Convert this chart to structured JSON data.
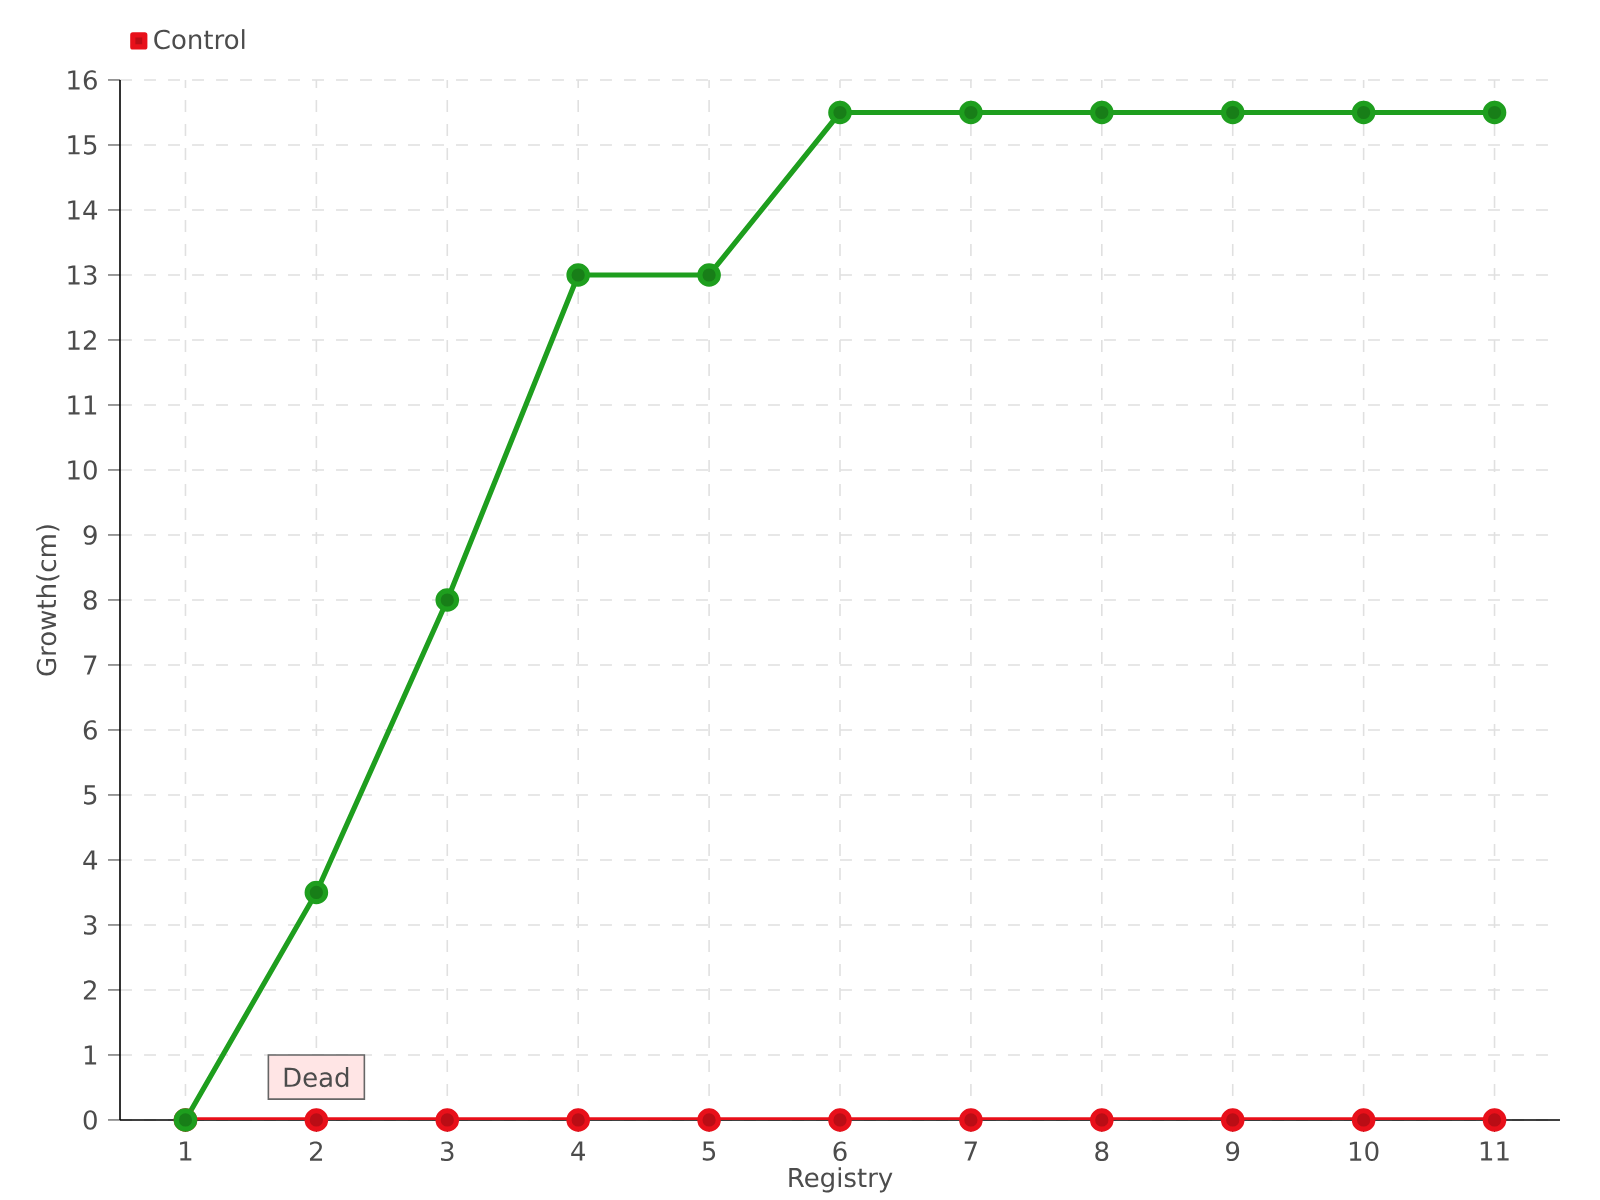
{
  "chart_data": {
    "type": "line",
    "xlabel": "Registry",
    "ylabel": "Growth(cm)",
    "categories": [
      "1",
      "2",
      "3",
      "4",
      "5",
      "6",
      "7",
      "8",
      "9",
      "10",
      "11"
    ],
    "series": [
      {
        "color": "#1e9e1e",
        "values": [
          0,
          3.5,
          8,
          13,
          13,
          15.5,
          15.5,
          15.5,
          15.5,
          15.5,
          15.5
        ]
      },
      {
        "name": "Control",
        "color": "#e8101a",
        "values": [
          0,
          0,
          0,
          0,
          0,
          0,
          0,
          0,
          0,
          0,
          0
        ]
      }
    ],
    "ylim": [
      0,
      16
    ],
    "yticks": [
      0,
      1,
      2,
      3,
      4,
      5,
      6,
      7,
      8,
      9,
      10,
      11,
      12,
      13,
      14,
      15,
      16
    ],
    "grid": true,
    "legend": "top left",
    "marker": "circle",
    "line_style": "solid",
    "annotations": [
      {
        "text": "Dead",
        "x": "2",
        "y": 0
      }
    ]
  }
}
